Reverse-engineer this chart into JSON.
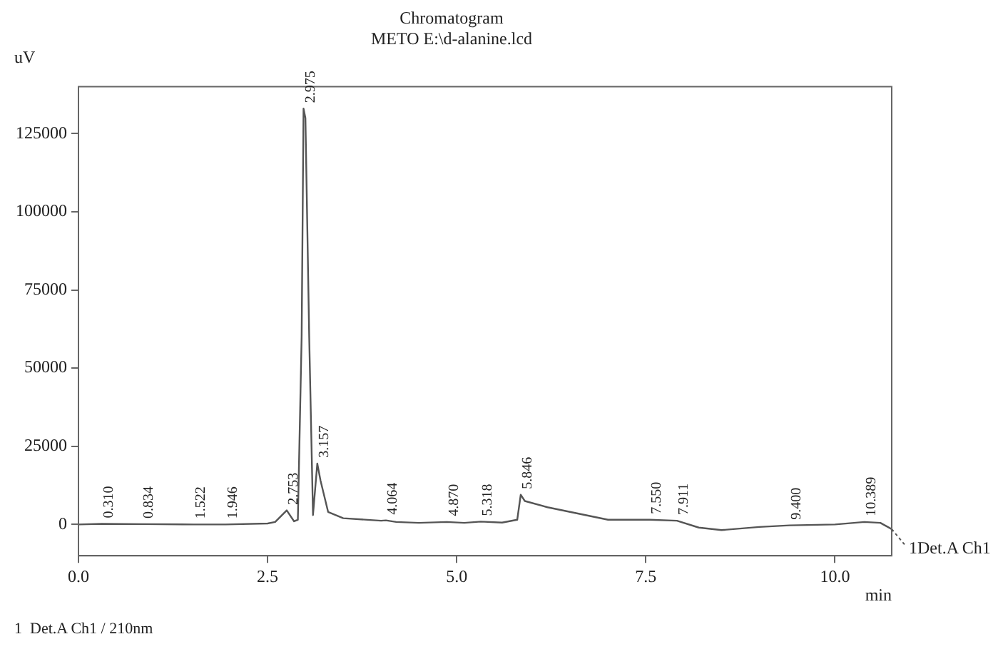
{
  "chart_data": {
    "type": "line",
    "title": "Chromatogram",
    "subtitle": "METO E:\\d-alanine.lcd",
    "xlabel": "min",
    "ylabel": "uV",
    "x": [
      0,
      0.31,
      0.834,
      1.522,
      1.946,
      2.5,
      2.6,
      2.753,
      2.85,
      2.9,
      2.95,
      2.975,
      3.0,
      3.05,
      3.1,
      3.157,
      3.2,
      3.3,
      3.5,
      4.0,
      4.064,
      4.2,
      4.5,
      4.87,
      5.1,
      5.318,
      5.6,
      5.8,
      5.846,
      5.9,
      6.2,
      6.6,
      7.0,
      7.55,
      7.911,
      8.2,
      8.5,
      9.0,
      9.4,
      10.0,
      10.389,
      10.6,
      10.75
    ],
    "series": [
      {
        "name": "1Det.A Ch1",
        "color": "#555555",
        "values": [
          0,
          200,
          100,
          0,
          0,
          300,
          800,
          4500,
          1000,
          1500,
          60000,
          133000,
          130000,
          60000,
          3000,
          19500,
          14000,
          4000,
          2000,
          1200,
          1300,
          800,
          500,
          800,
          500,
          900,
          600,
          1500,
          9500,
          7500,
          5500,
          3500,
          1500,
          1500,
          1200,
          -1000,
          -1800,
          -800,
          -300,
          0,
          800,
          500,
          -1500
        ]
      }
    ],
    "xlim": [
      0,
      10.75
    ],
    "xticks": [
      {
        "value": 0,
        "label": "0.0"
      },
      2.5,
      {
        "value": 5,
        "label": "5.0"
      },
      7.5,
      {
        "value": 10,
        "label": "10.0"
      }
    ],
    "ylim": [
      -10000,
      140000
    ],
    "yticks": [
      0,
      25000,
      50000,
      75000,
      100000,
      125000
    ],
    "grid": false,
    "legend": "right",
    "marker": "none",
    "line_style": "solid",
    "annotations": [
      {
        "text": "0.310",
        "x": 0.31,
        "y": 200
      },
      {
        "text": "0.834",
        "x": 0.834,
        "y": 100
      },
      {
        "text": "1.522",
        "x": 1.522,
        "y": 0
      },
      {
        "text": "1.946",
        "x": 1.946,
        "y": 0
      },
      {
        "text": "2.753",
        "x": 2.753,
        "y": 4500
      },
      {
        "text": "2.975",
        "x": 2.975,
        "y": 133000
      },
      {
        "text": "3.157",
        "x": 3.157,
        "y": 19500
      },
      {
        "text": "4.064",
        "x": 4.064,
        "y": 1300
      },
      {
        "text": "4.870",
        "x": 4.87,
        "y": 800
      },
      {
        "text": "5.318",
        "x": 5.318,
        "y": 900
      },
      {
        "text": "5.846",
        "x": 5.846,
        "y": 9500
      },
      {
        "text": "7.550",
        "x": 7.55,
        "y": 1500
      },
      {
        "text": "7.911",
        "x": 7.911,
        "y": 1200
      },
      {
        "text": "9.400",
        "x": 9.4,
        "y": -300
      },
      {
        "text": "10.389",
        "x": 10.389,
        "y": 800
      },
      "1  Det.A Ch1 / 210nm"
    ]
  }
}
